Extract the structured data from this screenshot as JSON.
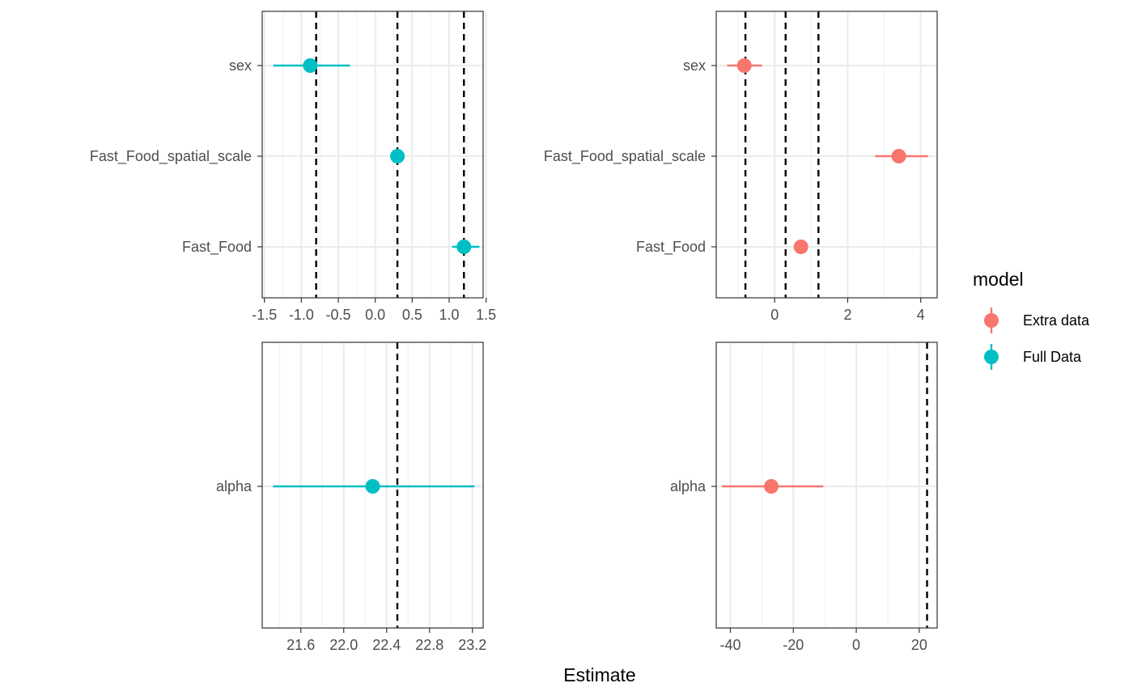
{
  "chart_data": {
    "type": "scatter",
    "xlabel": "Estimate",
    "legend": {
      "title": "model",
      "placement": "right",
      "entries": [
        {
          "name": "Extra data",
          "color": "#F8766D"
        },
        {
          "name": "Full Data",
          "color": "#00BFC4"
        }
      ]
    },
    "panels": [
      {
        "model": "Full Data",
        "color": "#00BFC4",
        "xlim": [
          -1.53,
          1.46
        ],
        "xticks": [
          -1.5,
          -1.0,
          -0.5,
          0.0,
          0.5,
          1.0,
          1.5
        ],
        "xtick_labels": [
          "-1.5",
          "-1.0",
          "-0.5",
          "0.0",
          "0.5",
          "1.0",
          "1.5"
        ],
        "categories": [
          "sex",
          "Fast_Food_spatial_scale",
          "Fast_Food"
        ],
        "points": [
          {
            "label": "sex",
            "estimate": -0.88,
            "low": -1.38,
            "high": -0.34
          },
          {
            "label": "Fast_Food_spatial_scale",
            "estimate": 0.3,
            "low": 0.3,
            "high": 0.3
          },
          {
            "label": "Fast_Food",
            "estimate": 1.2,
            "low": 1.04,
            "high": 1.41
          }
        ],
        "reference_lines": [
          -0.8,
          0.3,
          1.2
        ]
      },
      {
        "model": "Extra data",
        "color": "#F8766D",
        "xlim": [
          -1.6,
          4.45
        ],
        "xticks": [
          0,
          2,
          4
        ],
        "xtick_labels": [
          "0",
          "2",
          "4"
        ],
        "categories": [
          "sex",
          "Fast_Food_spatial_scale",
          "Fast_Food"
        ],
        "points": [
          {
            "label": "sex",
            "estimate": -0.83,
            "low": -1.3,
            "high": -0.35
          },
          {
            "label": "Fast_Food_spatial_scale",
            "estimate": 3.4,
            "low": 2.75,
            "high": 4.2
          },
          {
            "label": "Fast_Food",
            "estimate": 0.72,
            "low": 0.72,
            "high": 0.72
          }
        ],
        "reference_lines": [
          -0.8,
          0.3,
          1.2
        ]
      },
      {
        "model": "Full Data",
        "color": "#00BFC4",
        "xlim": [
          21.24,
          23.3
        ],
        "xticks": [
          21.6,
          22.0,
          22.4,
          22.8,
          23.2
        ],
        "xtick_labels": [
          "21.6",
          "22.0",
          "22.4",
          "22.8",
          "23.2"
        ],
        "categories": [
          "alpha"
        ],
        "points": [
          {
            "label": "alpha",
            "estimate": 22.27,
            "low": 21.34,
            "high": 23.22
          }
        ],
        "reference_lines": [
          22.5
        ]
      },
      {
        "model": "Extra data",
        "color": "#F8766D",
        "xlim": [
          -44.5,
          25.7
        ],
        "xticks": [
          -40,
          -20,
          0,
          20
        ],
        "xtick_labels": [
          "-40",
          "-20",
          "0",
          "20"
        ],
        "categories": [
          "alpha"
        ],
        "points": [
          {
            "label": "alpha",
            "estimate": -27.0,
            "low": -42.7,
            "high": -10.5
          }
        ],
        "reference_lines": [
          22.5
        ]
      }
    ]
  }
}
